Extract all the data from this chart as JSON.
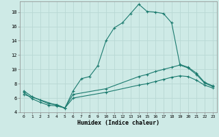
{
  "xlabel": "Humidex (Indice chaleur)",
  "bg_color": "#ceeae6",
  "line_color": "#1a7a6e",
  "grid_color": "#b8d8d4",
  "xlim": [
    -0.5,
    23.5
  ],
  "ylim": [
    4,
    19.5
  ],
  "yticks": [
    4,
    6,
    8,
    10,
    12,
    14,
    16,
    18
  ],
  "xticks": [
    0,
    1,
    2,
    3,
    4,
    5,
    6,
    7,
    8,
    9,
    10,
    11,
    12,
    13,
    14,
    15,
    16,
    17,
    18,
    19,
    20,
    21,
    22,
    23
  ],
  "curve1_x": [
    0,
    1,
    2,
    3,
    4,
    5,
    6,
    7,
    8,
    9,
    10,
    11,
    12,
    13,
    14,
    15,
    16,
    17,
    18,
    19,
    20,
    21,
    22,
    23
  ],
  "curve1_y": [
    7.0,
    6.2,
    5.7,
    5.2,
    5.1,
    4.6,
    7.0,
    8.7,
    9.0,
    10.5,
    14.0,
    15.8,
    16.5,
    17.8,
    19.1,
    18.1,
    18.0,
    17.8,
    16.5,
    10.7,
    10.3,
    9.5,
    8.2,
    7.7
  ],
  "curve2_x": [
    0,
    1,
    2,
    3,
    4,
    5,
    6,
    10,
    14,
    15,
    16,
    17,
    18,
    19,
    20,
    21,
    22,
    23
  ],
  "curve2_y": [
    6.8,
    5.9,
    5.4,
    5.0,
    4.9,
    4.6,
    6.5,
    7.3,
    9.0,
    9.3,
    9.7,
    10.0,
    10.3,
    10.6,
    10.2,
    9.3,
    8.1,
    7.6
  ],
  "curve3_x": [
    0,
    5,
    6,
    10,
    14,
    15,
    16,
    17,
    18,
    19,
    20,
    21,
    22,
    23
  ],
  "curve3_y": [
    6.5,
    4.6,
    6.0,
    6.8,
    7.8,
    8.0,
    8.3,
    8.6,
    8.9,
    9.1,
    9.0,
    8.5,
    7.8,
    7.4
  ]
}
